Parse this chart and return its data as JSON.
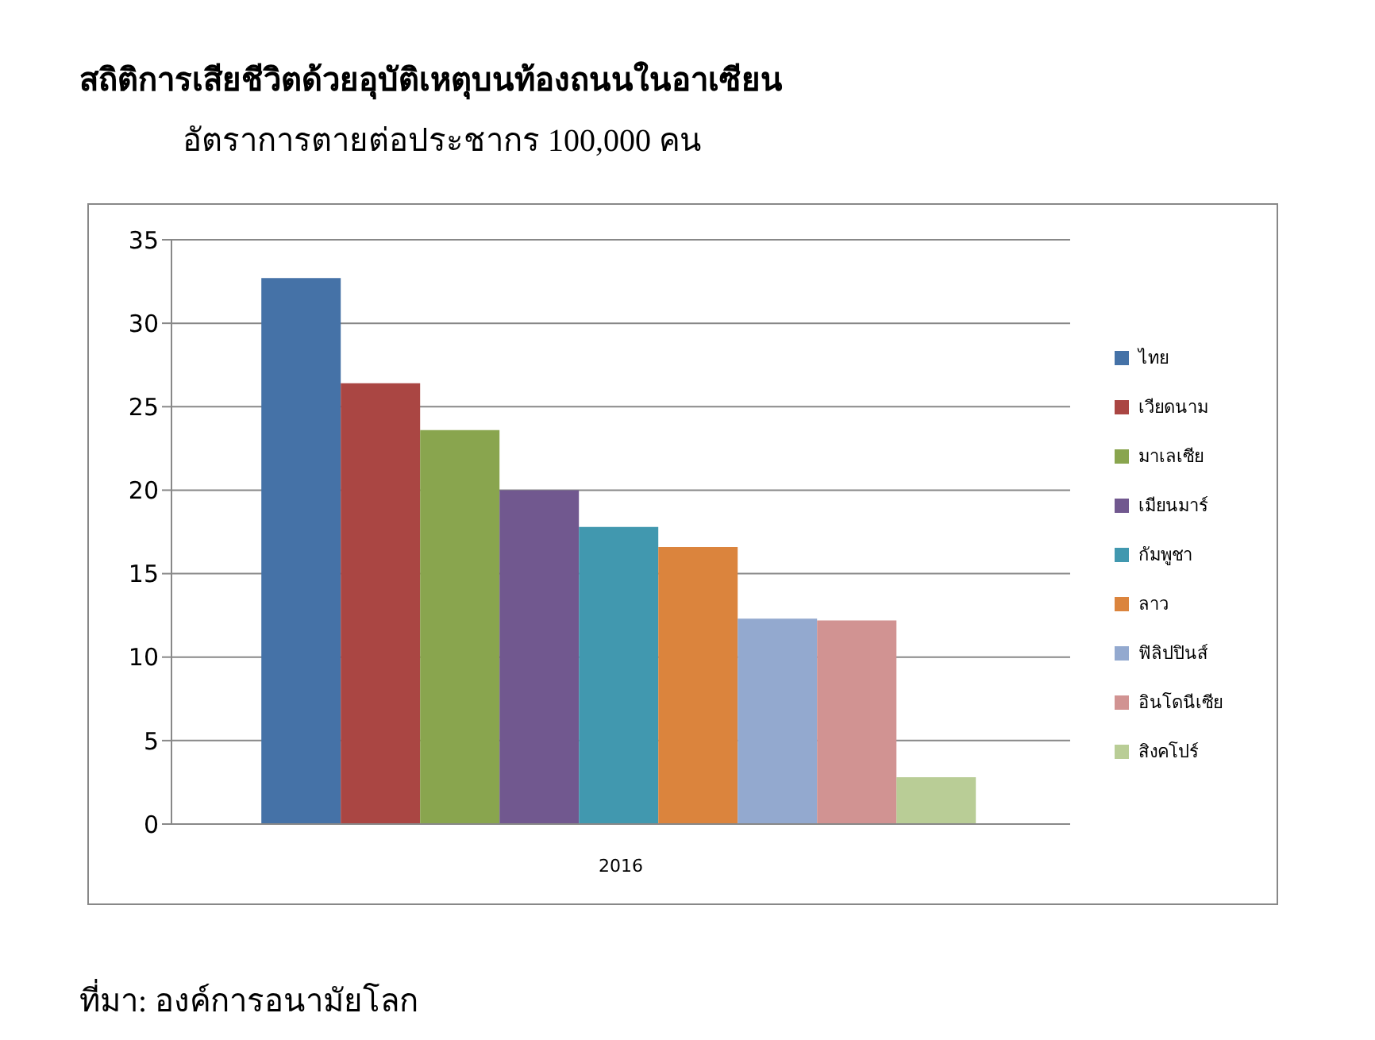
{
  "chart_data": {
    "type": "bar",
    "title": "สถิติการเสียชีวิตด้วยอุบัติเหตุบนท้องถนนในอาเซียน",
    "subtitle": "อัตราการตายต่อประชากร 100,000 คน",
    "annotations": [
      "ที่มา: องค์การอนามัยโลก"
    ],
    "categories": [
      "2016"
    ],
    "series": [
      {
        "name": "ไทย",
        "color": "#4572a7",
        "values": [
          32.7
        ]
      },
      {
        "name": "เวียดนาม",
        "color": "#aa4643",
        "values": [
          26.4
        ]
      },
      {
        "name": "มาเลเซีย",
        "color": "#89a54e",
        "values": [
          23.6
        ]
      },
      {
        "name": "เมียนมาร์",
        "color": "#71588f",
        "values": [
          20.0
        ]
      },
      {
        "name": "กัมพูชา",
        "color": "#4198af",
        "values": [
          17.8
        ]
      },
      {
        "name": "ลาว",
        "color": "#db843d",
        "values": [
          16.6
        ]
      },
      {
        "name": "ฟิลิปปินส์",
        "color": "#93a9cf",
        "values": [
          12.3
        ]
      },
      {
        "name": "อินโดนีเซีย",
        "color": "#d19392",
        "values": [
          12.2
        ]
      },
      {
        "name": "สิงคโปร์",
        "color": "#b9cd96",
        "values": [
          2.8
        ]
      }
    ],
    "ylim": [
      0,
      35
    ],
    "yticks": [
      0,
      5,
      10,
      15,
      20,
      25,
      30,
      35
    ],
    "grid": "y",
    "legend": "right"
  }
}
